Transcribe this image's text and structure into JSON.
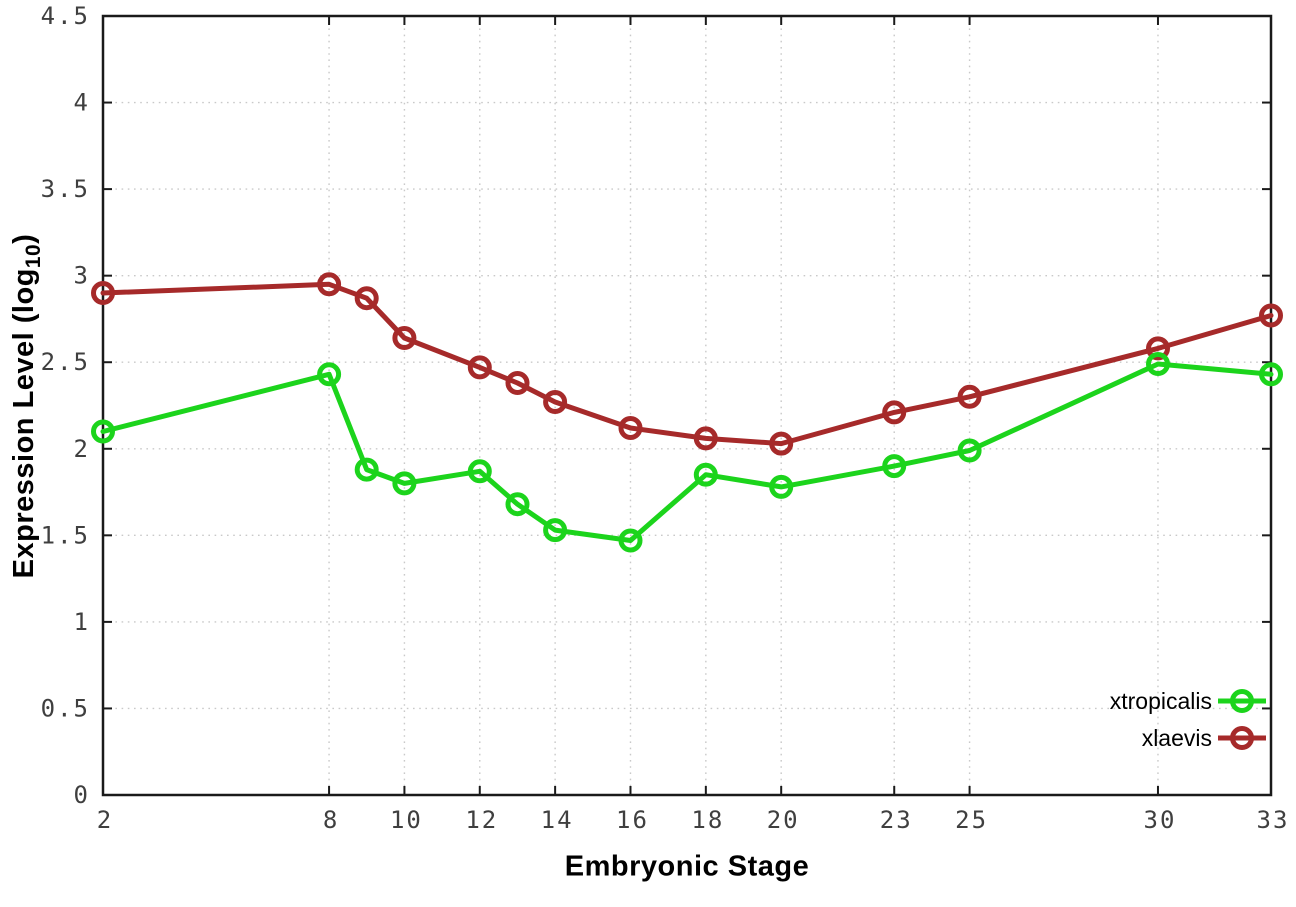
{
  "figure": {
    "background": "#ffffff",
    "border_color": "#1a1a1a",
    "grid_color": "#c9c9c9",
    "tick_label_color": "#3f3f3f"
  },
  "chart_data": {
    "type": "line",
    "title": "",
    "xlabel": "Embryonic Stage",
    "ylabel": "Expression Level (log10)",
    "ylabel_parts": {
      "prefix": "Expression Level (log",
      "sub": "10",
      "suffix": ")"
    },
    "x": [
      2,
      8,
      9,
      10,
      12,
      13,
      14,
      16,
      18,
      20,
      23,
      25,
      30,
      33
    ],
    "series": [
      {
        "name": "xtropicalis",
        "color": "#1cd41c",
        "values": [
          2.1,
          2.43,
          1.88,
          1.8,
          1.87,
          1.68,
          1.53,
          1.47,
          1.85,
          1.78,
          1.9,
          1.99,
          2.49,
          2.43
        ]
      },
      {
        "name": "xlaevis",
        "color": "#a62a2a",
        "values": [
          2.9,
          2.95,
          2.87,
          2.64,
          2.47,
          2.38,
          2.27,
          2.12,
          2.06,
          2.03,
          2.21,
          2.3,
          2.58,
          2.77
        ]
      }
    ],
    "xlim": [
      2,
      33
    ],
    "ylim": [
      0,
      4.5
    ],
    "x_ticks": [
      2,
      8,
      10,
      12,
      14,
      16,
      18,
      20,
      23,
      25,
      30,
      33
    ],
    "x_tick_labels": [
      "2",
      "8",
      "10",
      "12",
      "14",
      "16",
      "18",
      "20",
      "23",
      "25",
      "30",
      "33"
    ],
    "y_ticks": [
      0,
      0.5,
      1,
      1.5,
      2,
      2.5,
      3,
      3.5,
      4,
      4.5
    ],
    "y_tick_labels": [
      "0",
      "0.5",
      "1",
      "1.5",
      "2",
      "2.5",
      "3",
      "3.5",
      "4",
      "4.5"
    ],
    "grid": true,
    "grid_style": "dotted",
    "marker": "open-circle",
    "legend_position": "inside-bottom-right",
    "legend_order": [
      "xtropicalis",
      "xlaevis"
    ]
  }
}
